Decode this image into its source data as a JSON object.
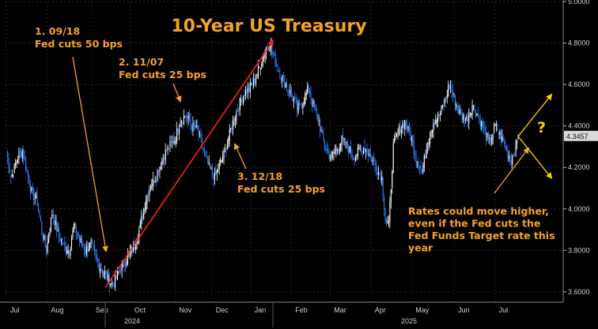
{
  "chart_data": {
    "type": "candlestick",
    "title": "10-Year US Treasury",
    "ylim": [
      3.55,
      5.0
    ],
    "y_ticks": [
      "3.6000",
      "3.8000",
      "4.0000",
      "4.2000",
      "4.4000",
      "4.6000",
      "4.8000",
      "5.0000"
    ],
    "y_tick_values": [
      3.6,
      3.8,
      4.0,
      4.2,
      4.4,
      4.6,
      4.8,
      5.0
    ],
    "x_ticks": [
      "Jul",
      "Aug",
      "Sep",
      "Oct",
      "Nov",
      "Dec",
      "Jan",
      "Feb",
      "Mar",
      "Apr",
      "May",
      "Jun",
      "Jul"
    ],
    "x_years": [
      "2024",
      "2025"
    ],
    "last_value": "4.3457",
    "question_mark": "?",
    "colors": {
      "up": "#ffffff",
      "down": "#2a7fff",
      "trend": "#ff2020",
      "annotation": "#f4a12a",
      "scenario": "#ffd400"
    },
    "annotations": [
      {
        "lines": [
          "1. 09/18",
          "Fed cuts 50 bps"
        ]
      },
      {
        "lines": [
          "2. 11/07",
          "Fed cuts 25 bps"
        ]
      },
      {
        "lines": [
          "3. 12/18",
          "Fed cuts 25 bps"
        ]
      },
      {
        "lines": [
          "Rates could move higher,",
          "even if the Fed cuts the",
          "Fed Funds Target rate this",
          "year"
        ]
      }
    ],
    "trend_line": {
      "from": 3.62,
      "to": 4.81
    },
    "scenarios": {
      "start": 4.35,
      "up": 4.55,
      "down": 4.15
    },
    "anchors": [
      [
        0,
        4.28
      ],
      [
        4,
        4.15
      ],
      [
        10,
        4.25
      ],
      [
        14,
        4.28
      ],
      [
        18,
        4.18
      ],
      [
        22,
        4.08
      ],
      [
        27,
        4.03
      ],
      [
        31,
        3.9
      ],
      [
        35,
        3.8
      ],
      [
        40,
        3.98
      ],
      [
        45,
        3.88
      ],
      [
        50,
        3.82
      ],
      [
        55,
        3.8
      ],
      [
        59,
        3.92
      ],
      [
        64,
        3.85
      ],
      [
        69,
        3.8
      ],
      [
        74,
        3.83
      ],
      [
        79,
        3.75
      ],
      [
        84,
        3.7
      ],
      [
        89,
        3.66
      ],
      [
        93,
        3.63
      ],
      [
        97,
        3.68
      ],
      [
        102,
        3.73
      ],
      [
        107,
        3.78
      ],
      [
        112,
        3.82
      ],
      [
        117,
        3.92
      ],
      [
        122,
        4.05
      ],
      [
        127,
        4.12
      ],
      [
        132,
        4.18
      ],
      [
        137,
        4.25
      ],
      [
        142,
        4.3
      ],
      [
        147,
        4.33
      ],
      [
        152,
        4.43
      ],
      [
        157,
        4.45
      ],
      [
        162,
        4.4
      ],
      [
        167,
        4.38
      ],
      [
        172,
        4.28
      ],
      [
        177,
        4.2
      ],
      [
        182,
        4.15
      ],
      [
        187,
        4.22
      ],
      [
        192,
        4.3
      ],
      [
        197,
        4.4
      ],
      [
        202,
        4.48
      ],
      [
        207,
        4.55
      ],
      [
        212,
        4.58
      ],
      [
        217,
        4.62
      ],
      [
        222,
        4.7
      ],
      [
        227,
        4.78
      ],
      [
        230,
        4.8
      ],
      [
        234,
        4.72
      ],
      [
        239,
        4.65
      ],
      [
        244,
        4.6
      ],
      [
        249,
        4.55
      ],
      [
        254,
        4.48
      ],
      [
        259,
        4.52
      ],
      [
        264,
        4.58
      ],
      [
        268,
        4.5
      ],
      [
        273,
        4.42
      ],
      [
        278,
        4.3
      ],
      [
        283,
        4.25
      ],
      [
        288,
        4.28
      ],
      [
        293,
        4.33
      ],
      [
        298,
        4.3
      ],
      [
        303,
        4.25
      ],
      [
        308,
        4.28
      ],
      [
        313,
        4.3
      ],
      [
        318,
        4.25
      ],
      [
        323,
        4.2
      ],
      [
        328,
        4.15
      ],
      [
        331,
        3.95
      ],
      [
        334,
        3.92
      ],
      [
        338,
        4.3
      ],
      [
        343,
        4.38
      ],
      [
        348,
        4.42
      ],
      [
        353,
        4.35
      ],
      [
        358,
        4.25
      ],
      [
        363,
        4.18
      ],
      [
        368,
        4.32
      ],
      [
        373,
        4.42
      ],
      [
        378,
        4.45
      ],
      [
        383,
        4.52
      ],
      [
        387,
        4.6
      ],
      [
        392,
        4.52
      ],
      [
        397,
        4.45
      ],
      [
        402,
        4.43
      ],
      [
        407,
        4.5
      ],
      [
        412,
        4.45
      ],
      [
        417,
        4.38
      ],
      [
        422,
        4.32
      ],
      [
        427,
        4.4
      ],
      [
        432,
        4.35
      ],
      [
        437,
        4.28
      ],
      [
        441,
        4.24
      ],
      [
        445,
        4.3
      ],
      [
        447,
        4.35
      ]
    ]
  }
}
